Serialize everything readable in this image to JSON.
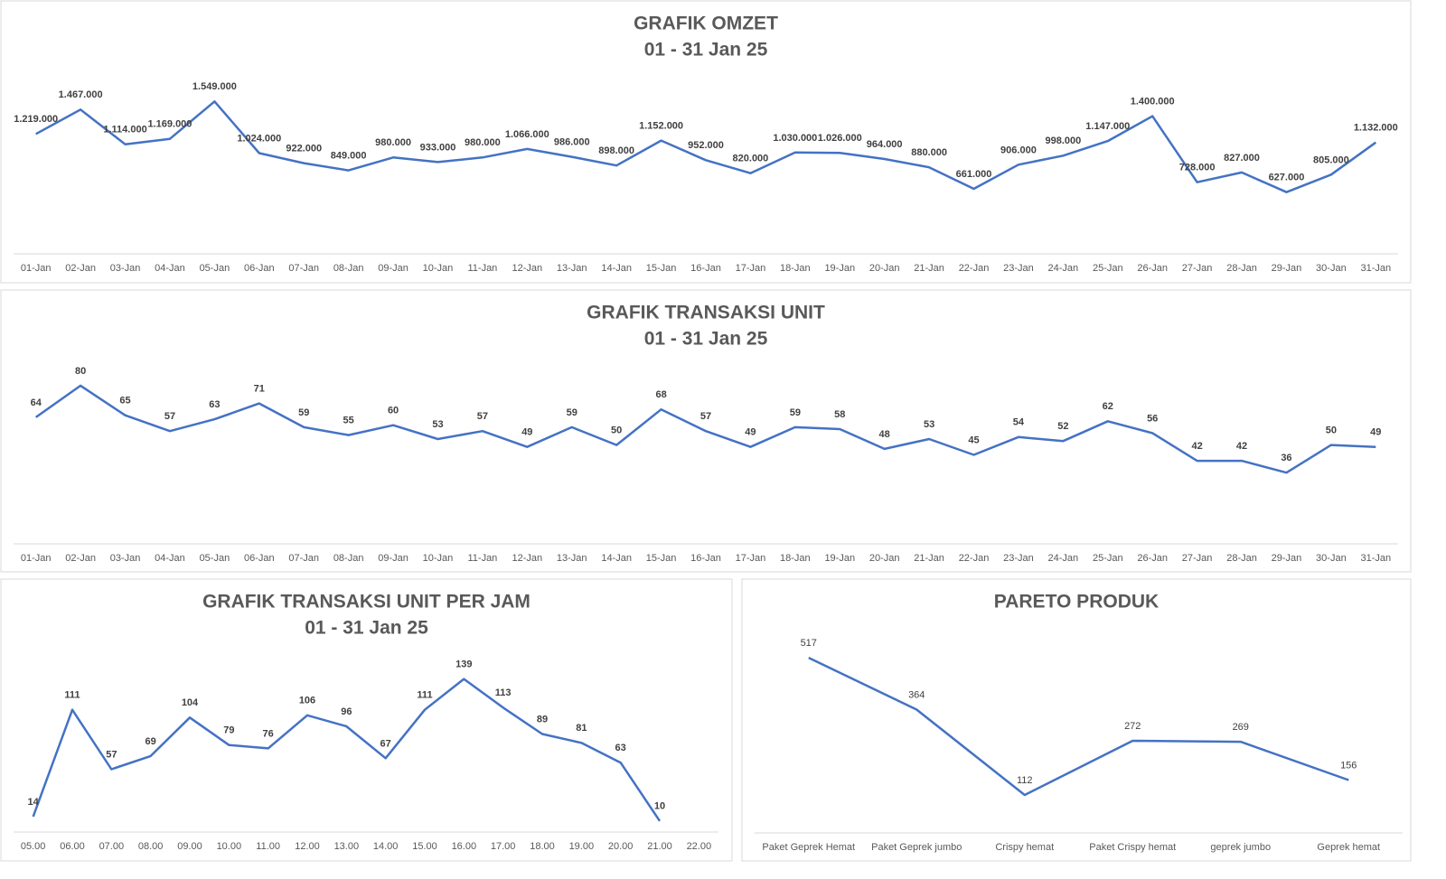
{
  "chart_data": [
    {
      "type": "line",
      "title": "GRAFIK OMZET",
      "subtitle": "01 - 31 Jan 25",
      "categories": [
        "01-Jan",
        "02-Jan",
        "03-Jan",
        "04-Jan",
        "05-Jan",
        "06-Jan",
        "07-Jan",
        "08-Jan",
        "09-Jan",
        "10-Jan",
        "11-Jan",
        "12-Jan",
        "13-Jan",
        "14-Jan",
        "15-Jan",
        "16-Jan",
        "17-Jan",
        "18-Jan",
        "19-Jan",
        "20-Jan",
        "21-Jan",
        "22-Jan",
        "23-Jan",
        "24-Jan",
        "25-Jan",
        "26-Jan",
        "27-Jan",
        "28-Jan",
        "29-Jan",
        "30-Jan",
        "31-Jan"
      ],
      "values": [
        1219000,
        1467000,
        1114000,
        1169000,
        1549000,
        1024000,
        922000,
        849000,
        980000,
        933000,
        980000,
        1066000,
        986000,
        898000,
        1152000,
        952000,
        820000,
        1030000,
        1026000,
        964000,
        880000,
        661000,
        906000,
        998000,
        1147000,
        1400000,
        728000,
        827000,
        627000,
        805000,
        1132000
      ],
      "value_labels": [
        "1.219.000",
        "1.467.000",
        "1.114.000",
        "1.169.000",
        "1.549.000",
        "1.024.000",
        "922.000",
        "849.000",
        "980.000",
        "933.000",
        "980.000",
        "1.066.000",
        "986.000",
        "898.000",
        "1.152.000",
        "952.000",
        "820.000",
        "1.030.000",
        "1.026.000",
        "964.000",
        "880.000",
        "661.000",
        "906.000",
        "998.000",
        "1.147.000",
        "1.400.000",
        "728.000",
        "827.000",
        "627.000",
        "805.000",
        "1.132.000"
      ],
      "color": "#4472c4",
      "ylim": [
        0,
        1800000
      ]
    },
    {
      "type": "line",
      "title": "GRAFIK TRANSAKSI UNIT",
      "subtitle": "01 - 31 Jan 25",
      "categories": [
        "01-Jan",
        "02-Jan",
        "03-Jan",
        "04-Jan",
        "05-Jan",
        "06-Jan",
        "07-Jan",
        "08-Jan",
        "09-Jan",
        "10-Jan",
        "11-Jan",
        "12-Jan",
        "13-Jan",
        "14-Jan",
        "15-Jan",
        "16-Jan",
        "17-Jan",
        "18-Jan",
        "19-Jan",
        "20-Jan",
        "21-Jan",
        "22-Jan",
        "23-Jan",
        "24-Jan",
        "25-Jan",
        "26-Jan",
        "27-Jan",
        "28-Jan",
        "29-Jan",
        "30-Jan",
        "31-Jan"
      ],
      "values": [
        64,
        80,
        65,
        57,
        63,
        71,
        59,
        55,
        60,
        53,
        57,
        49,
        59,
        50,
        68,
        57,
        49,
        59,
        58,
        48,
        53,
        45,
        54,
        52,
        62,
        56,
        42,
        42,
        36,
        50,
        49
      ],
      "color": "#4472c4",
      "ylim": [
        0,
        90
      ]
    },
    {
      "type": "line",
      "title": "GRAFIK TRANSAKSI UNIT PER JAM",
      "subtitle": "01 - 31 Jan 25",
      "categories": [
        "05.00",
        "06.00",
        "07.00",
        "08.00",
        "09.00",
        "10.00",
        "11.00",
        "12.00",
        "13.00",
        "14.00",
        "15.00",
        "16.00",
        "17.00",
        "18.00",
        "19.00",
        "20.00",
        "21.00",
        "22.00"
      ],
      "values": [
        14,
        111,
        57,
        69,
        104,
        79,
        76,
        106,
        96,
        67,
        111,
        139,
        113,
        89,
        81,
        63,
        10,
        null
      ],
      "color": "#4472c4",
      "ylim": [
        0,
        160
      ]
    },
    {
      "type": "line",
      "title": "PARETO PRODUK",
      "categories": [
        "Paket Geprek Hemat",
        "Paket Geprek jumbo",
        "Crispy hemat",
        "Paket Crispy hemat",
        "geprek jumbo",
        "Geprek hemat"
      ],
      "values": [
        517,
        364,
        112,
        272,
        269,
        156
      ],
      "color": "#4472c4",
      "ylim": [
        0,
        600
      ]
    }
  ]
}
